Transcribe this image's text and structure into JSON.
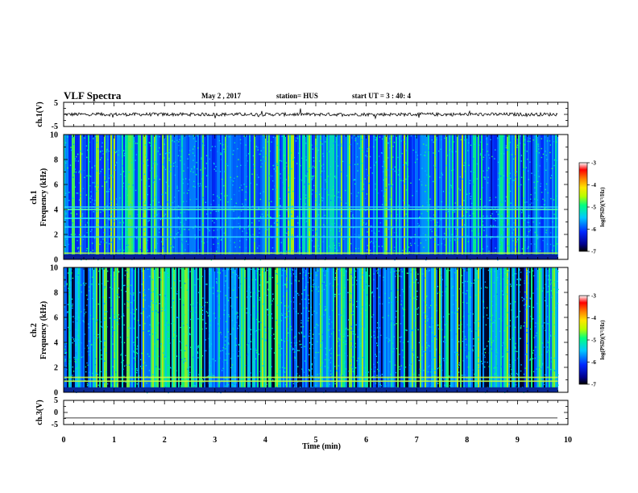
{
  "header": {
    "title": "VLF Spectra",
    "date": "May 2 , 2017",
    "station": "station= HUS",
    "start": "start UT = 3 : 40: 4"
  },
  "chart_data": [
    {
      "type": "line",
      "name": "ch1-waveform",
      "ylabel": "ch.1(V)",
      "ylim": [
        -5,
        5
      ],
      "yticks": [
        "5",
        "-5"
      ],
      "xlim": [
        0,
        10
      ],
      "trace_end_min": 9.8,
      "approx_level": 0,
      "color": "#000000"
    },
    {
      "type": "heatmap",
      "name": "ch1-spectrogram",
      "ylabel": "ch.1 Frequency (kHz)",
      "ylim": [
        0,
        10
      ],
      "yticks": [
        "0",
        "2",
        "4",
        "6",
        "8",
        "10"
      ],
      "xlim": [
        0,
        10
      ],
      "data_end_min": 9.8,
      "bright_bands_khz": [
        0.5,
        1.8,
        2.6,
        3.3,
        4.0,
        4.2
      ]
    },
    {
      "type": "heatmap",
      "name": "ch2-spectrogram",
      "ylabel": "ch.2 Frequency (kHz)",
      "ylim": [
        0,
        10
      ],
      "yticks": [
        "0",
        "2",
        "4",
        "6",
        "8",
        "10"
      ],
      "xlim": [
        0,
        10
      ],
      "data_end_min": 9.8,
      "bright_bands_khz": [
        0.9,
        1.2
      ]
    },
    {
      "type": "line",
      "name": "ch3-waveform",
      "ylabel": "ch.3(V)",
      "ylim": [
        -5,
        5
      ],
      "yticks": [
        "5",
        "0",
        "-5"
      ],
      "xlim": [
        0,
        10
      ],
      "trace_end_min": 9.8,
      "approx_level": -2.3,
      "color": "#000000"
    }
  ],
  "xaxis": {
    "label": "Time (min)",
    "ticks": [
      "0",
      "1",
      "2",
      "3",
      "4",
      "5",
      "6",
      "7",
      "8",
      "9",
      "10"
    ]
  },
  "colorbar": {
    "label": "log(PSD)(V²/Hz)",
    "range": [
      -7,
      -3
    ],
    "ticks": [
      "-3",
      "-4",
      "-5",
      "-6",
      "-7"
    ],
    "colors": [
      "#000000",
      "#0000c8",
      "#0050ff",
      "#00c8ff",
      "#00ff80",
      "#c8ff00",
      "#ffff00",
      "#ff8000",
      "#ff0000",
      "#ffffff"
    ]
  }
}
